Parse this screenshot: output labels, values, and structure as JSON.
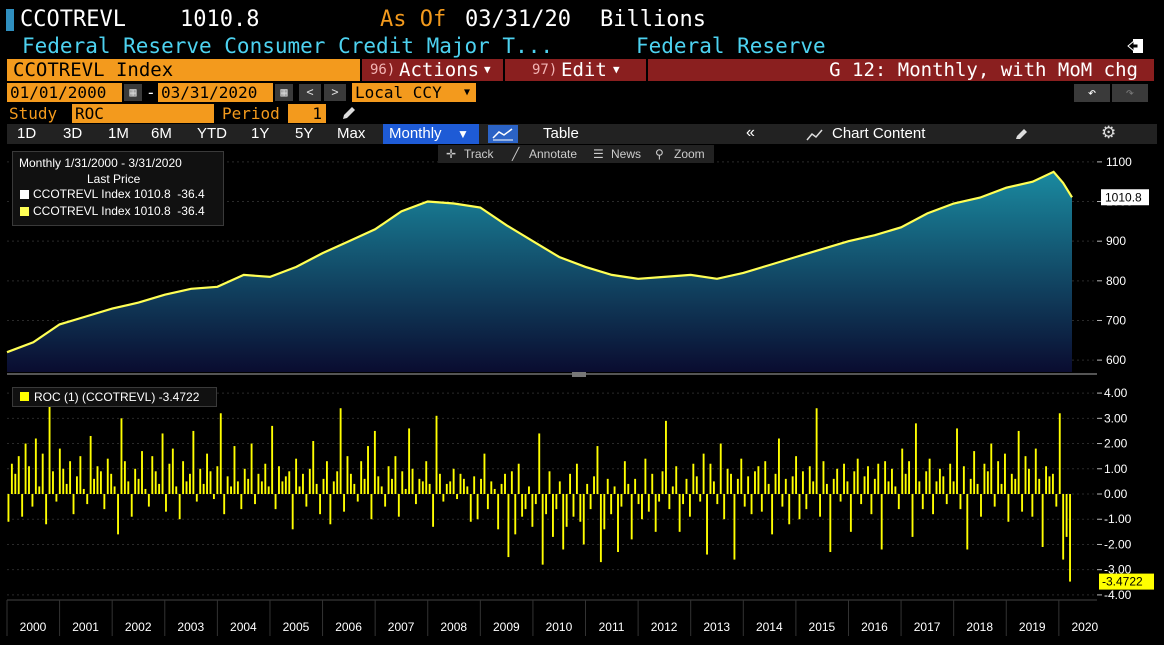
{
  "header": {
    "ticker": "CCOTREVL",
    "last_value": "1010.8",
    "as_of_label": "As Of",
    "as_of_date": "03/31/20",
    "units": "Billions",
    "description": "Federal Reserve Consumer Credit Major T...",
    "source": "Federal Reserve",
    "export_icon": "export-icon"
  },
  "commandbar": {
    "security": "CCOTREVL Index",
    "actions_num": "96)",
    "actions_label": "Actions",
    "edit_num": "97)",
    "edit_label": "Edit",
    "chart_name": "G 12: Monthly, with MoM chg"
  },
  "range": {
    "start_date": "01/01/2000",
    "dash": "-",
    "end_date": "03/31/2020",
    "currency": "Local CCY"
  },
  "study": {
    "label": "Study",
    "value": "ROC",
    "period_label": "Period",
    "period_value": "1"
  },
  "toolbar": {
    "periods": [
      "1D",
      "3D",
      "1M",
      "6M",
      "YTD",
      "1Y",
      "5Y",
      "Max"
    ],
    "frequency": "Monthly",
    "table_label": "Table",
    "chart_content_label": "Chart Content"
  },
  "chart_tools": {
    "track": "Track",
    "annotate": "Annotate",
    "news": "News",
    "zoom": "Zoom"
  },
  "legend_top": {
    "range": "Monthly 1/31/2000 - 3/31/2020",
    "subtitle": "Last Price",
    "entry1": "CCOTREVL Index 1010.8  -36.4",
    "entry2": "CCOTREVL Index 1010.8  -36.4"
  },
  "legend_bottom": {
    "entry": "ROC (1) (CCOTREVL) -3.4722"
  },
  "colors": {
    "line": "#ffff55",
    "bars": "#ffff00",
    "area_top": "#1a8aa0",
    "area_bottom": "#0a0c30",
    "accent_blue": "#1e5bd6",
    "orange": "#f39a1d",
    "darkred": "#8a1f1f"
  },
  "chart_data": [
    {
      "type": "area",
      "series": [
        {
          "name": "CCOTREVL Index"
        }
      ],
      "x": [
        2000.0,
        2000.5,
        2001.0,
        2001.5,
        2002.0,
        2002.5,
        2003.0,
        2003.5,
        2004.0,
        2004.5,
        2005.0,
        2005.5,
        2006.0,
        2006.5,
        2007.0,
        2007.5,
        2008.0,
        2008.5,
        2009.0,
        2009.5,
        2010.0,
        2010.5,
        2011.0,
        2011.5,
        2012.0,
        2012.5,
        2013.0,
        2013.5,
        2014.0,
        2014.5,
        2015.0,
        2015.5,
        2016.0,
        2016.5,
        2017.0,
        2017.5,
        2018.0,
        2018.5,
        2019.0,
        2019.5,
        2019.9,
        2020.08,
        2020.25
      ],
      "values": [
        620,
        645,
        690,
        710,
        730,
        745,
        765,
        780,
        785,
        815,
        810,
        835,
        870,
        900,
        930,
        975,
        1000,
        995,
        985,
        940,
        900,
        860,
        835,
        815,
        805,
        810,
        815,
        805,
        820,
        840,
        860,
        880,
        900,
        915,
        935,
        970,
        995,
        1010,
        1035,
        1050,
        1075,
        1047,
        1010.8
      ],
      "ylim": [
        570,
        1130
      ],
      "yticks": [
        600,
        700,
        800,
        900,
        1000,
        1100
      ],
      "last_label": "1010.8"
    },
    {
      "type": "bar",
      "series": [
        {
          "name": "ROC (1) (CCOTREVL)"
        }
      ],
      "values": [
        -1.1,
        1.2,
        0.8,
        1.5,
        -0.9,
        2.0,
        1.1,
        -0.5,
        2.2,
        0.3,
        1.6,
        -1.2,
        3.5,
        0.9,
        -0.3,
        1.8,
        1.0,
        0.4,
        1.3,
        -0.8,
        0.7,
        1.5,
        0.2,
        -0.4,
        2.3,
        0.6,
        1.1,
        0.9,
        -0.6,
        1.4,
        0.8,
        0.3,
        -1.6,
        3.0,
        1.3,
        0.5,
        -0.9,
        1.0,
        0.6,
        1.7,
        0.2,
        -0.5,
        1.5,
        0.9,
        0.4,
        2.4,
        -0.7,
        1.2,
        1.8,
        0.3,
        -1.0,
        1.3,
        0.5,
        0.8,
        2.5,
        -0.3,
        1.0,
        0.4,
        1.6,
        0.9,
        -0.2,
        1.1,
        3.2,
        -0.8,
        0.7,
        0.3,
        1.9,
        0.5,
        -0.6,
        1.0,
        0.6,
        2.0,
        -0.4,
        0.8,
        0.5,
        1.2,
        0.3,
        2.7,
        -0.6,
        1.1,
        0.5,
        0.7,
        0.9,
        -1.4,
        1.4,
        0.3,
        0.8,
        -0.5,
        1.0,
        2.1,
        0.4,
        -0.8,
        0.6,
        1.3,
        -1.2,
        0.5,
        0.9,
        3.4,
        -0.7,
        1.5,
        0.8,
        0.4,
        -0.3,
        1.3,
        0.6,
        1.9,
        -1.0,
        2.5,
        0.7,
        0.3,
        -0.5,
        1.1,
        0.6,
        1.5,
        -0.9,
        0.9,
        0.2,
        2.6,
        1.0,
        -0.4,
        0.6,
        0.5,
        1.3,
        0.4,
        -1.3,
        3.1,
        0.8,
        -0.3,
        0.4,
        0.5,
        1.0,
        -0.2,
        0.8,
        0.6,
        0.3,
        -1.1,
        0.7,
        -1.0,
        0.6,
        1.6,
        -0.6,
        0.5,
        0.2,
        -1.4,
        0.4,
        0.8,
        -2.5,
        0.9,
        -1.6,
        1.2,
        -0.9,
        -0.6,
        0.3,
        -1.3,
        -0.4,
        2.4,
        -2.8,
        -0.8,
        0.9,
        -1.7,
        -0.6,
        0.5,
        -2.2,
        -1.3,
        0.8,
        -0.9,
        1.2,
        -1.1,
        -2.0,
        0.4,
        -0.6,
        0.7,
        1.9,
        -2.7,
        -1.4,
        0.6,
        -0.8,
        0.3,
        -2.3,
        -0.5,
        1.3,
        0.4,
        -1.8,
        0.6,
        -0.4,
        -1.0,
        1.4,
        -0.7,
        0.8,
        -1.5,
        -0.3,
        0.9,
        2.9,
        -0.6,
        0.3,
        1.1,
        -1.5,
        -0.4,
        0.6,
        -0.9,
        1.2,
        0.7,
        -0.3,
        1.6,
        -2.4,
        1.2,
        0.5,
        -0.4,
        2.0,
        -1.0,
        1.0,
        0.8,
        -2.6,
        0.6,
        1.4,
        -0.5,
        0.7,
        -0.8,
        0.9,
        1.1,
        -0.7,
        1.3,
        0.4,
        -1.6,
        0.8,
        2.2,
        -0.5,
        0.6,
        -1.2,
        0.7,
        1.5,
        -1.0,
        0.9,
        -0.6,
        1.1,
        0.5,
        3.4,
        -0.9,
        1.3,
        0.4,
        -2.3,
        0.6,
        1.0,
        -0.3,
        1.2,
        0.5,
        -1.5,
        0.9,
        1.4,
        -0.4,
        0.7,
        1.1,
        -0.8,
        0.6,
        1.2,
        -2.2,
        1.3,
        0.5,
        1.0,
        0.3,
        -0.6,
        1.8,
        0.8,
        1.3,
        -1.7,
        2.8,
        0.5,
        -0.6,
        0.9,
        1.4,
        -0.8,
        0.5,
        1.0,
        0.7,
        -0.4,
        1.2,
        0.5,
        2.6,
        -0.6,
        1.1,
        -2.2,
        0.6,
        1.7,
        0.4,
        -0.9,
        1.2,
        0.9,
        2.0,
        -0.5,
        1.3,
        0.4,
        1.6,
        -1.1,
        0.8,
        0.6,
        2.5,
        -0.7,
        1.5,
        1.0,
        -0.9,
        1.8,
        0.6,
        -2.1,
        1.1,
        0.7,
        0.8,
        -0.5,
        3.2,
        -2.6,
        -1.7,
        -3.4722
      ],
      "ylim": [
        -4.4,
        4.4
      ],
      "yticks": [
        4.0,
        3.0,
        2.0,
        1.0,
        0.0,
        -1.0,
        -2.0,
        -3.0,
        -4.0
      ],
      "ytick_labels": [
        "4.00",
        "3.00",
        "2.00",
        "1.00",
        "0.00",
        "-1.00",
        "-2.00",
        "-3.00",
        "-4.00"
      ],
      "last_label": "-3.4722"
    }
  ],
  "xaxis": {
    "years": [
      "2000",
      "2001",
      "2002",
      "2003",
      "2004",
      "2005",
      "2006",
      "2007",
      "2008",
      "2009",
      "2010",
      "2011",
      "2012",
      "2013",
      "2014",
      "2015",
      "2016",
      "2017",
      "2018",
      "2019",
      "2020"
    ]
  }
}
